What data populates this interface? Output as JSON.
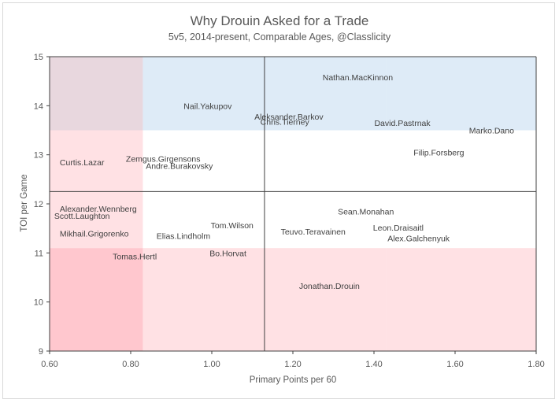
{
  "chart_data": {
    "type": "scatter",
    "title": "Why Drouin Asked for a Trade",
    "subtitle": "5v5, 2014-present, Comparable Ages, @Classlicity",
    "xlabel": "Primary Points per 60",
    "ylabel": "TOI per Game",
    "xlim": [
      0.6,
      1.8
    ],
    "ylim": [
      9,
      15
    ],
    "xticks": [
      "0.60",
      "0.80",
      "1.00",
      "1.20",
      "1.40",
      "1.60",
      "1.80"
    ],
    "yticks": [
      "9",
      "10",
      "11",
      "12",
      "13",
      "14",
      "15"
    ],
    "xtick_values": [
      0.6,
      0.8,
      1.0,
      1.2,
      1.4,
      1.6,
      1.8
    ],
    "ytick_values": [
      9,
      10,
      11,
      12,
      13,
      14,
      15
    ],
    "grid": false,
    "reference_lines": {
      "x": 1.13,
      "y": 12.25
    },
    "band_edges": {
      "x": [
        0.6,
        0.83,
        1.43,
        1.8
      ],
      "y": [
        9,
        11.1,
        13.5,
        15
      ]
    },
    "band_colors": [
      [
        "#ffc7ce",
        "#ffe1e4",
        "#ffe1e4",
        "#e8d7de"
      ],
      [
        "#ffe1e4",
        "#ffffff",
        "#ffffff",
        "#deebf7"
      ],
      [
        "#e8d7de",
        "#deebf7",
        "#deebf7",
        "#c6dcf0"
      ]
    ],
    "points": [
      {
        "label": "Nathan.MacKinnon",
        "x": 1.36,
        "y": 14.58
      },
      {
        "label": "Nail.Yakupov",
        "x": 0.99,
        "y": 14.0
      },
      {
        "label": "Aleksander.Barkov",
        "x": 1.19,
        "y": 13.78
      },
      {
        "label": "Chris.Tierney",
        "x": 1.18,
        "y": 13.68
      },
      {
        "label": "David.Pastrnak",
        "x": 1.47,
        "y": 13.65
      },
      {
        "label": "Marko.Dano",
        "x": 1.69,
        "y": 13.5
      },
      {
        "label": "Filip.Forsberg",
        "x": 1.56,
        "y": 13.05
      },
      {
        "label": "Curtis.Lazar",
        "x": 0.68,
        "y": 12.85
      },
      {
        "label": "Zemgus.Girgensons",
        "x": 0.88,
        "y": 12.92
      },
      {
        "label": "Andre.Burakovsky",
        "x": 0.92,
        "y": 12.78
      },
      {
        "label": "Alexander.Wennberg",
        "x": 0.72,
        "y": 11.9
      },
      {
        "label": "Scott.Laughton",
        "x": 0.68,
        "y": 11.76
      },
      {
        "label": "Sean.Monahan",
        "x": 1.38,
        "y": 11.85
      },
      {
        "label": "Tom.Wilson",
        "x": 1.05,
        "y": 11.57
      },
      {
        "label": "Leon.Draisaitl",
        "x": 1.46,
        "y": 11.52
      },
      {
        "label": "Mikhail.Grigorenko",
        "x": 0.71,
        "y": 11.4
      },
      {
        "label": "Elias.Lindholm",
        "x": 0.93,
        "y": 11.35
      },
      {
        "label": "Teuvo.Teravainen",
        "x": 1.25,
        "y": 11.44
      },
      {
        "label": "Alex.Galchenyuk",
        "x": 1.51,
        "y": 11.3
      },
      {
        "label": "Tomas.Hertl",
        "x": 0.81,
        "y": 10.93
      },
      {
        "label": "Bo.Horvat",
        "x": 1.04,
        "y": 11.0
      },
      {
        "label": "Jonathan.Drouin",
        "x": 1.29,
        "y": 10.33
      }
    ]
  }
}
